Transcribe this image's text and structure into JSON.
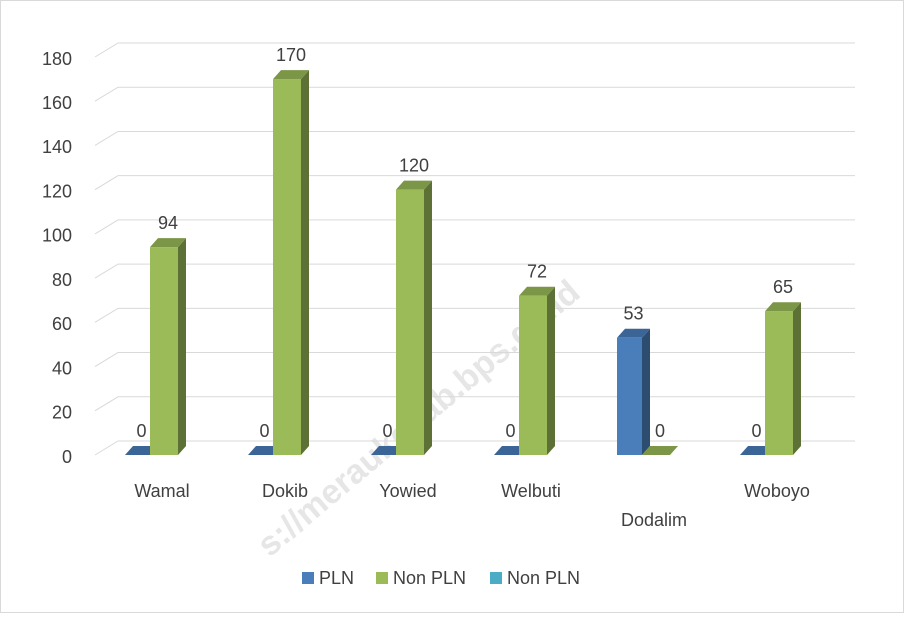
{
  "chart_data": {
    "type": "bar3d",
    "categories": [
      "Wamal",
      "Dokib",
      "Yowied",
      "Welbuti",
      "Dodalim",
      "Woboyo"
    ],
    "series": [
      {
        "name": "PLN",
        "color": "#4a7ebb",
        "values": [
          0,
          0,
          0,
          0,
          53,
          0
        ]
      },
      {
        "name": "Non PLN",
        "color": "#9bbb59",
        "values": [
          94,
          170,
          120,
          72,
          0,
          65
        ]
      },
      {
        "name": "Non PLN",
        "color": "#4bacc6",
        "values": [
          null,
          null,
          null,
          null,
          null,
          null
        ]
      }
    ],
    "ylim": [
      0,
      180
    ],
    "yticks": [
      0,
      20,
      40,
      60,
      80,
      100,
      120,
      140,
      160,
      180
    ],
    "grid": true,
    "legend": "bottom",
    "watermark": "s://meraukekab.bps.go.id"
  }
}
